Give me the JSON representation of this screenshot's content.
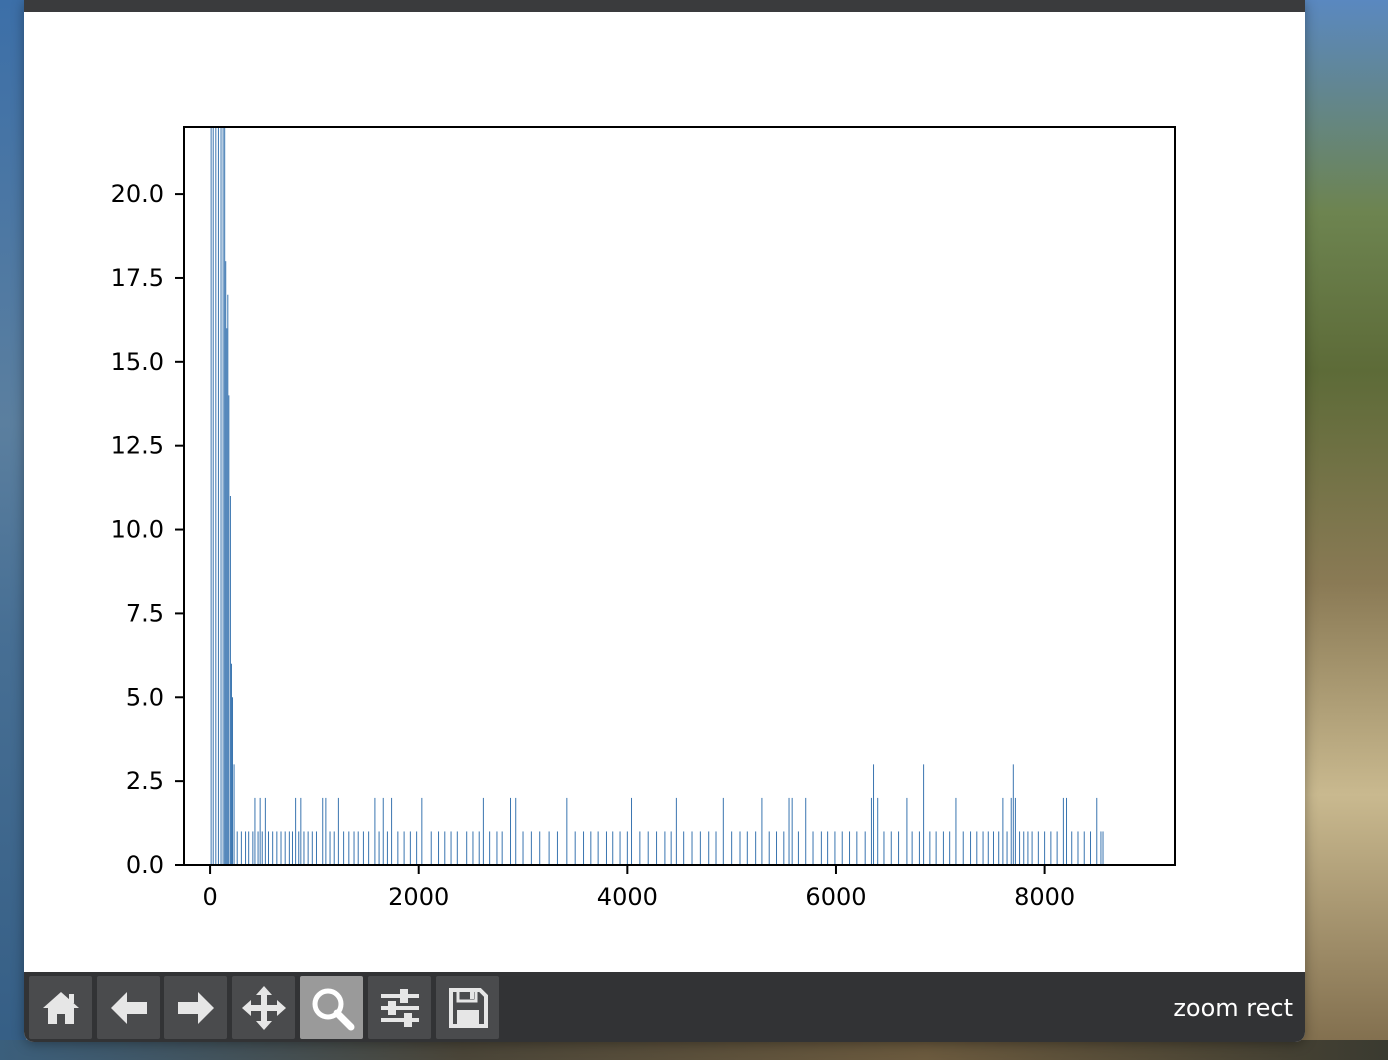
{
  "window": {
    "status": "zoom rect"
  },
  "toolbar": {
    "buttons": [
      {
        "name": "home-button",
        "icon": "home-icon"
      },
      {
        "name": "back-button",
        "icon": "arrow-left-icon"
      },
      {
        "name": "forward-button",
        "icon": "arrow-right-icon"
      },
      {
        "name": "pan-button",
        "icon": "move-icon"
      },
      {
        "name": "zoom-button",
        "icon": "search-icon",
        "active": true
      },
      {
        "name": "subplots-button",
        "icon": "sliders-icon"
      },
      {
        "name": "save-button",
        "icon": "save-icon"
      }
    ]
  },
  "colors": {
    "bar": "#3a75b0",
    "toolbar_bg": "#323335",
    "button_bg": "#4a4b4d",
    "button_active": "#9a9a9a"
  },
  "chart_data": {
    "type": "bar",
    "title": "",
    "xlabel": "",
    "ylabel": "",
    "xlim": [
      -250,
      9250
    ],
    "ylim": [
      0,
      22
    ],
    "xticks": [
      0,
      2000,
      4000,
      6000,
      8000
    ],
    "xtick_labels": [
      "0",
      "2000",
      "4000",
      "6000",
      "8000"
    ],
    "yticks": [
      0.0,
      2.5,
      5.0,
      7.5,
      10.0,
      12.5,
      15.0,
      17.5,
      20.0
    ],
    "ytick_labels": [
      "0.0",
      "2.5",
      "5.0",
      "7.5",
      "10.0",
      "12.5",
      "15.0",
      "17.5",
      "20.0"
    ],
    "grid": false,
    "bar_width": 6,
    "series": [
      {
        "points": [
          [
            10,
            22
          ],
          [
            30,
            22
          ],
          [
            55,
            22
          ],
          [
            80,
            22
          ],
          [
            105,
            22
          ],
          [
            125,
            22
          ],
          [
            140,
            22
          ],
          [
            150,
            18
          ],
          [
            160,
            16
          ],
          [
            170,
            17
          ],
          [
            180,
            14
          ],
          [
            195,
            11
          ],
          [
            205,
            6
          ],
          [
            215,
            5
          ],
          [
            230,
            3
          ],
          [
            260,
            1
          ],
          [
            300,
            1
          ],
          [
            340,
            1
          ],
          [
            370,
            1
          ],
          [
            410,
            1
          ],
          [
            430,
            2
          ],
          [
            460,
            1
          ],
          [
            480,
            2
          ],
          [
            500,
            1
          ],
          [
            530,
            2
          ],
          [
            560,
            1
          ],
          [
            600,
            1
          ],
          [
            640,
            1
          ],
          [
            680,
            1
          ],
          [
            720,
            1
          ],
          [
            760,
            1
          ],
          [
            790,
            1
          ],
          [
            820,
            2
          ],
          [
            850,
            1
          ],
          [
            870,
            2
          ],
          [
            900,
            1
          ],
          [
            940,
            1
          ],
          [
            980,
            1
          ],
          [
            1020,
            1
          ],
          [
            1080,
            2
          ],
          [
            1110,
            2
          ],
          [
            1150,
            1
          ],
          [
            1190,
            1
          ],
          [
            1230,
            2
          ],
          [
            1280,
            1
          ],
          [
            1330,
            1
          ],
          [
            1380,
            1
          ],
          [
            1420,
            1
          ],
          [
            1470,
            1
          ],
          [
            1520,
            1
          ],
          [
            1580,
            2
          ],
          [
            1620,
            1
          ],
          [
            1660,
            2
          ],
          [
            1700,
            1
          ],
          [
            1740,
            2
          ],
          [
            1800,
            1
          ],
          [
            1860,
            1
          ],
          [
            1920,
            1
          ],
          [
            1980,
            1
          ],
          [
            2030,
            2
          ],
          [
            2120,
            1
          ],
          [
            2190,
            1
          ],
          [
            2250,
            1
          ],
          [
            2310,
            1
          ],
          [
            2370,
            1
          ],
          [
            2460,
            1
          ],
          [
            2520,
            1
          ],
          [
            2580,
            1
          ],
          [
            2620,
            2
          ],
          [
            2680,
            1
          ],
          [
            2750,
            1
          ],
          [
            2800,
            1
          ],
          [
            2880,
            2
          ],
          [
            2930,
            2
          ],
          [
            3000,
            1
          ],
          [
            3080,
            1
          ],
          [
            3160,
            1
          ],
          [
            3250,
            1
          ],
          [
            3330,
            1
          ],
          [
            3420,
            2
          ],
          [
            3500,
            1
          ],
          [
            3580,
            1
          ],
          [
            3650,
            1
          ],
          [
            3720,
            1
          ],
          [
            3800,
            1
          ],
          [
            3860,
            1
          ],
          [
            3930,
            1
          ],
          [
            4000,
            1
          ],
          [
            4040,
            2
          ],
          [
            4120,
            1
          ],
          [
            4200,
            1
          ],
          [
            4280,
            1
          ],
          [
            4360,
            1
          ],
          [
            4420,
            1
          ],
          [
            4470,
            2
          ],
          [
            4540,
            1
          ],
          [
            4620,
            1
          ],
          [
            4700,
            1
          ],
          [
            4780,
            1
          ],
          [
            4850,
            1
          ],
          [
            4920,
            2
          ],
          [
            5000,
            1
          ],
          [
            5080,
            1
          ],
          [
            5150,
            1
          ],
          [
            5230,
            1
          ],
          [
            5290,
            2
          ],
          [
            5360,
            1
          ],
          [
            5430,
            1
          ],
          [
            5500,
            1
          ],
          [
            5550,
            2
          ],
          [
            5580,
            2
          ],
          [
            5640,
            1
          ],
          [
            5710,
            2
          ],
          [
            5780,
            1
          ],
          [
            5860,
            1
          ],
          [
            5920,
            1
          ],
          [
            5990,
            1
          ],
          [
            6060,
            1
          ],
          [
            6130,
            1
          ],
          [
            6200,
            1
          ],
          [
            6280,
            1
          ],
          [
            6340,
            2
          ],
          [
            6360,
            3
          ],
          [
            6400,
            2
          ],
          [
            6460,
            1
          ],
          [
            6530,
            1
          ],
          [
            6600,
            1
          ],
          [
            6680,
            2
          ],
          [
            6730,
            1
          ],
          [
            6800,
            1
          ],
          [
            6840,
            3
          ],
          [
            6900,
            1
          ],
          [
            6960,
            1
          ],
          [
            7030,
            1
          ],
          [
            7090,
            1
          ],
          [
            7150,
            2
          ],
          [
            7220,
            1
          ],
          [
            7290,
            1
          ],
          [
            7350,
            1
          ],
          [
            7410,
            1
          ],
          [
            7460,
            1
          ],
          [
            7510,
            1
          ],
          [
            7560,
            1
          ],
          [
            7600,
            2
          ],
          [
            7640,
            1
          ],
          [
            7680,
            2
          ],
          [
            7700,
            3
          ],
          [
            7720,
            2
          ],
          [
            7760,
            1
          ],
          [
            7800,
            1
          ],
          [
            7840,
            1
          ],
          [
            7880,
            1
          ],
          [
            7940,
            1
          ],
          [
            8000,
            1
          ],
          [
            8060,
            1
          ],
          [
            8120,
            1
          ],
          [
            8180,
            2
          ],
          [
            8210,
            2
          ],
          [
            8260,
            1
          ],
          [
            8320,
            1
          ],
          [
            8380,
            1
          ],
          [
            8440,
            1
          ],
          [
            8500,
            2
          ],
          [
            8540,
            1
          ],
          [
            8560,
            1
          ]
        ]
      }
    ]
  }
}
